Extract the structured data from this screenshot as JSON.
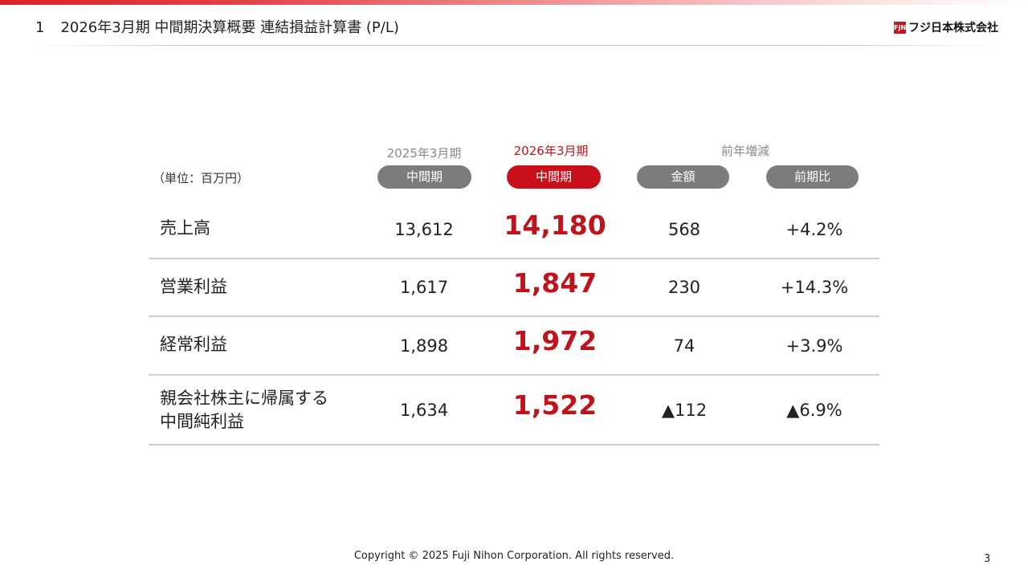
{
  "header": {
    "section_number": "1",
    "title": "2026年3月期 中間期決算概要 連結損益計算書 (P/L)",
    "logo_mark": "FJN",
    "logo_text": "フジ日本株式会社"
  },
  "table": {
    "unit": "（単位：百万円）",
    "columns": [
      {
        "year": "2025年3月期",
        "pill": "中間期",
        "highlight": false
      },
      {
        "year": "2026年3月期",
        "pill": "中間期",
        "highlight": true
      },
      {
        "group": "前年増減",
        "pill": "金額",
        "highlight": false
      },
      {
        "pill": "前期比",
        "highlight": false
      }
    ],
    "rows": [
      {
        "label_lines": [
          "売上高"
        ],
        "prev": "13,612",
        "curr": "14,180",
        "diff": "568",
        "ratio": "+4.2%"
      },
      {
        "label_lines": [
          "営業利益"
        ],
        "prev": "1,617",
        "curr": "1,847",
        "diff": "230",
        "ratio": "+14.3%"
      },
      {
        "label_lines": [
          "経常利益"
        ],
        "prev": "1,898",
        "curr": "1,972",
        "diff": "74",
        "ratio": "+3.9%"
      },
      {
        "label_lines": [
          "親会社株主に帰属する",
          "中間純利益"
        ],
        "prev": "1,634",
        "curr": "1,522",
        "diff": "▲112",
        "ratio": "▲6.9%"
      }
    ]
  },
  "footer": {
    "copyright": "Copyright © 2025 Fuji Nihon Corporation.   All rights reserved.",
    "page_number": "3"
  },
  "colors": {
    "accent_red": "#c9101a",
    "pill_gray": "#7c7c7c"
  }
}
